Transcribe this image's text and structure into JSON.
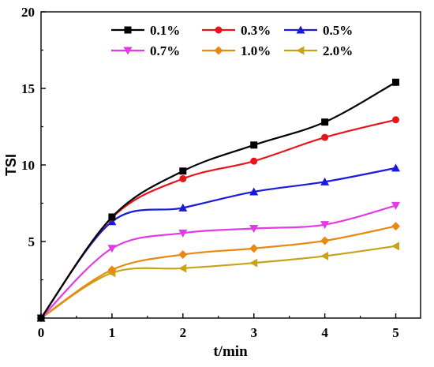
{
  "chart_data": {
    "type": "line",
    "title": "",
    "xlabel": "t/min",
    "ylabel": "TSI",
    "xlim": [
      0,
      5.35
    ],
    "ylim": [
      0,
      20
    ],
    "xticks": [
      0,
      1,
      2,
      3,
      4,
      5
    ],
    "yticks": [
      5,
      10,
      15,
      20
    ],
    "x_tick_labels": [
      "0",
      "1",
      "2",
      "3",
      "4",
      "5"
    ],
    "y_tick_labels": [
      "5",
      "10",
      "15",
      "20"
    ],
    "legend_position": "top-center",
    "grid": false,
    "x": [
      0,
      1,
      2,
      3,
      4,
      5
    ],
    "series": [
      {
        "name": "0.1%",
        "color": "#000000",
        "marker": "square",
        "values": [
          0.0,
          6.6,
          9.6,
          11.3,
          12.8,
          15.4
        ]
      },
      {
        "name": "0.3%",
        "color": "#e8141b",
        "marker": "circle",
        "values": [
          0.0,
          6.55,
          9.1,
          10.25,
          11.8,
          12.95
        ]
      },
      {
        "name": "0.5%",
        "color": "#1a1adc",
        "marker": "triangle-up",
        "values": [
          0.0,
          6.3,
          7.2,
          8.25,
          8.9,
          9.8
        ]
      },
      {
        "name": "0.7%",
        "color": "#e23be6",
        "marker": "triangle-down",
        "values": [
          0.0,
          4.55,
          5.55,
          5.85,
          6.1,
          7.35
        ]
      },
      {
        "name": "1.0%",
        "color": "#e88a12",
        "marker": "diamond",
        "values": [
          0.0,
          3.15,
          4.15,
          4.55,
          5.05,
          6.0
        ]
      },
      {
        "name": "2.0%",
        "color": "#c9a21a",
        "marker": "triangle-left",
        "values": [
          0.0,
          2.95,
          3.25,
          3.6,
          4.05,
          4.7
        ]
      }
    ]
  }
}
